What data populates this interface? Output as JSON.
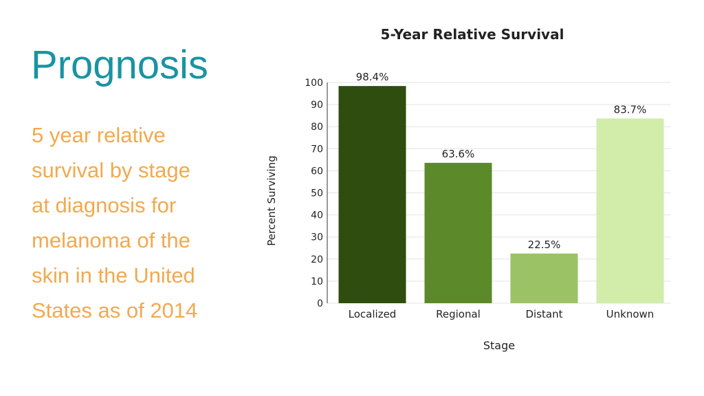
{
  "slide": {
    "title": "Prognosis",
    "body_lines": [
      "5 year relative",
      "survival by stage",
      "at diagnosis for",
      "melanoma of the",
      "skin in the United",
      "States as of 2014"
    ]
  },
  "colors": {
    "title": "#1a93a3",
    "body": "#f2a94e",
    "bars": [
      "#2e4d0e",
      "#5c8a2a",
      "#9cc266",
      "#d2ecaa"
    ]
  },
  "chart_data": {
    "type": "bar",
    "title": "5-Year Relative Survival",
    "xlabel": "Stage",
    "ylabel": "Percent Surviving",
    "categories": [
      "Localized",
      "Regional",
      "Distant",
      "Unknown"
    ],
    "values": [
      98.4,
      63.6,
      22.5,
      83.7
    ],
    "value_labels": [
      "98.4%",
      "63.6%",
      "22.5%",
      "83.7%"
    ],
    "yticks": [
      "0",
      "10",
      "20",
      "30",
      "40",
      "50",
      "60",
      "70",
      "80",
      "90",
      "100"
    ],
    "ylim": [
      0,
      100
    ],
    "grid": true,
    "legend": false
  }
}
